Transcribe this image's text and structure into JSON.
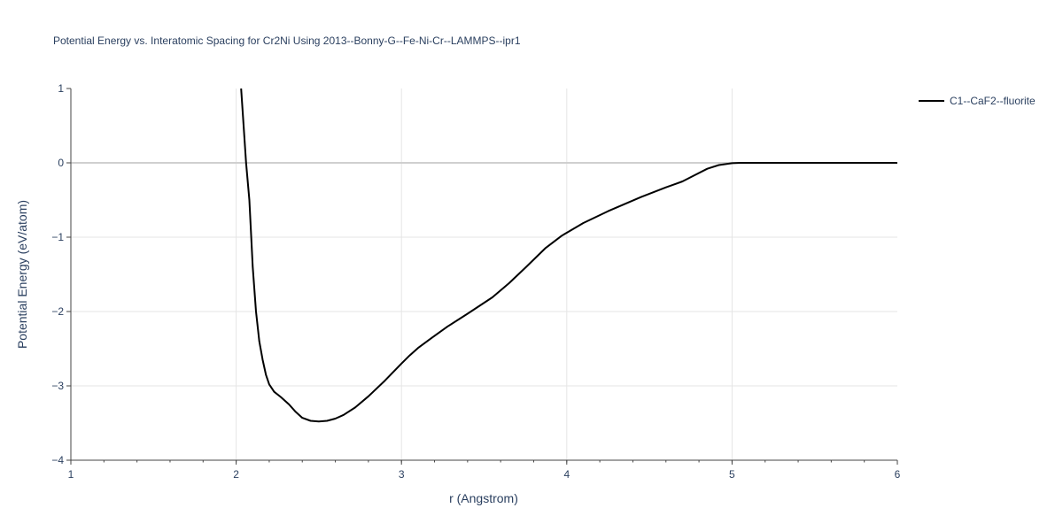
{
  "chart_data": {
    "type": "line",
    "title": "Potential Energy vs. Interatomic Spacing for Cr2Ni Using 2013--Bonny-G--Fe-Ni-Cr--LAMMPS--ipr1",
    "xlabel": "r (Angstrom)",
    "ylabel": "Potential Energy (eV/atom)",
    "xlim": [
      1,
      6
    ],
    "ylim": [
      -4,
      1
    ],
    "x_ticks": [
      "1",
      "2",
      "3",
      "4",
      "5",
      "6"
    ],
    "y_ticks": [
      "1",
      "0",
      "−1",
      "−2",
      "−3",
      "−4"
    ],
    "grid": true,
    "legend_position": "top-right",
    "series": [
      {
        "name": "C1--CaF2--fluorite",
        "color": "#000000",
        "points": [
          [
            2.03,
            1.0
          ],
          [
            2.06,
            0.0
          ],
          [
            2.08,
            -0.5
          ],
          [
            2.1,
            -1.4
          ],
          [
            2.12,
            -2.0
          ],
          [
            2.14,
            -2.4
          ],
          [
            2.16,
            -2.65
          ],
          [
            2.18,
            -2.85
          ],
          [
            2.2,
            -2.98
          ],
          [
            2.23,
            -3.08
          ],
          [
            2.27,
            -3.15
          ],
          [
            2.32,
            -3.25
          ],
          [
            2.36,
            -3.35
          ],
          [
            2.4,
            -3.43
          ],
          [
            2.45,
            -3.47
          ],
          [
            2.5,
            -3.48
          ],
          [
            2.55,
            -3.47
          ],
          [
            2.6,
            -3.44
          ],
          [
            2.65,
            -3.39
          ],
          [
            2.72,
            -3.29
          ],
          [
            2.8,
            -3.14
          ],
          [
            2.9,
            -2.93
          ],
          [
            3.0,
            -2.7
          ],
          [
            3.05,
            -2.59
          ],
          [
            3.1,
            -2.49
          ],
          [
            3.18,
            -2.36
          ],
          [
            3.28,
            -2.2
          ],
          [
            3.4,
            -2.03
          ],
          [
            3.55,
            -1.81
          ],
          [
            3.65,
            -1.62
          ],
          [
            3.75,
            -1.41
          ],
          [
            3.87,
            -1.15
          ],
          [
            3.97,
            -0.98
          ],
          [
            4.1,
            -0.81
          ],
          [
            4.25,
            -0.65
          ],
          [
            4.45,
            -0.46
          ],
          [
            4.6,
            -0.33
          ],
          [
            4.7,
            -0.25
          ],
          [
            4.78,
            -0.16
          ],
          [
            4.85,
            -0.08
          ],
          [
            4.92,
            -0.03
          ],
          [
            5.0,
            -0.005
          ],
          [
            5.05,
            0.0
          ],
          [
            5.5,
            0.0
          ],
          [
            6.0,
            0.0
          ]
        ]
      }
    ]
  }
}
